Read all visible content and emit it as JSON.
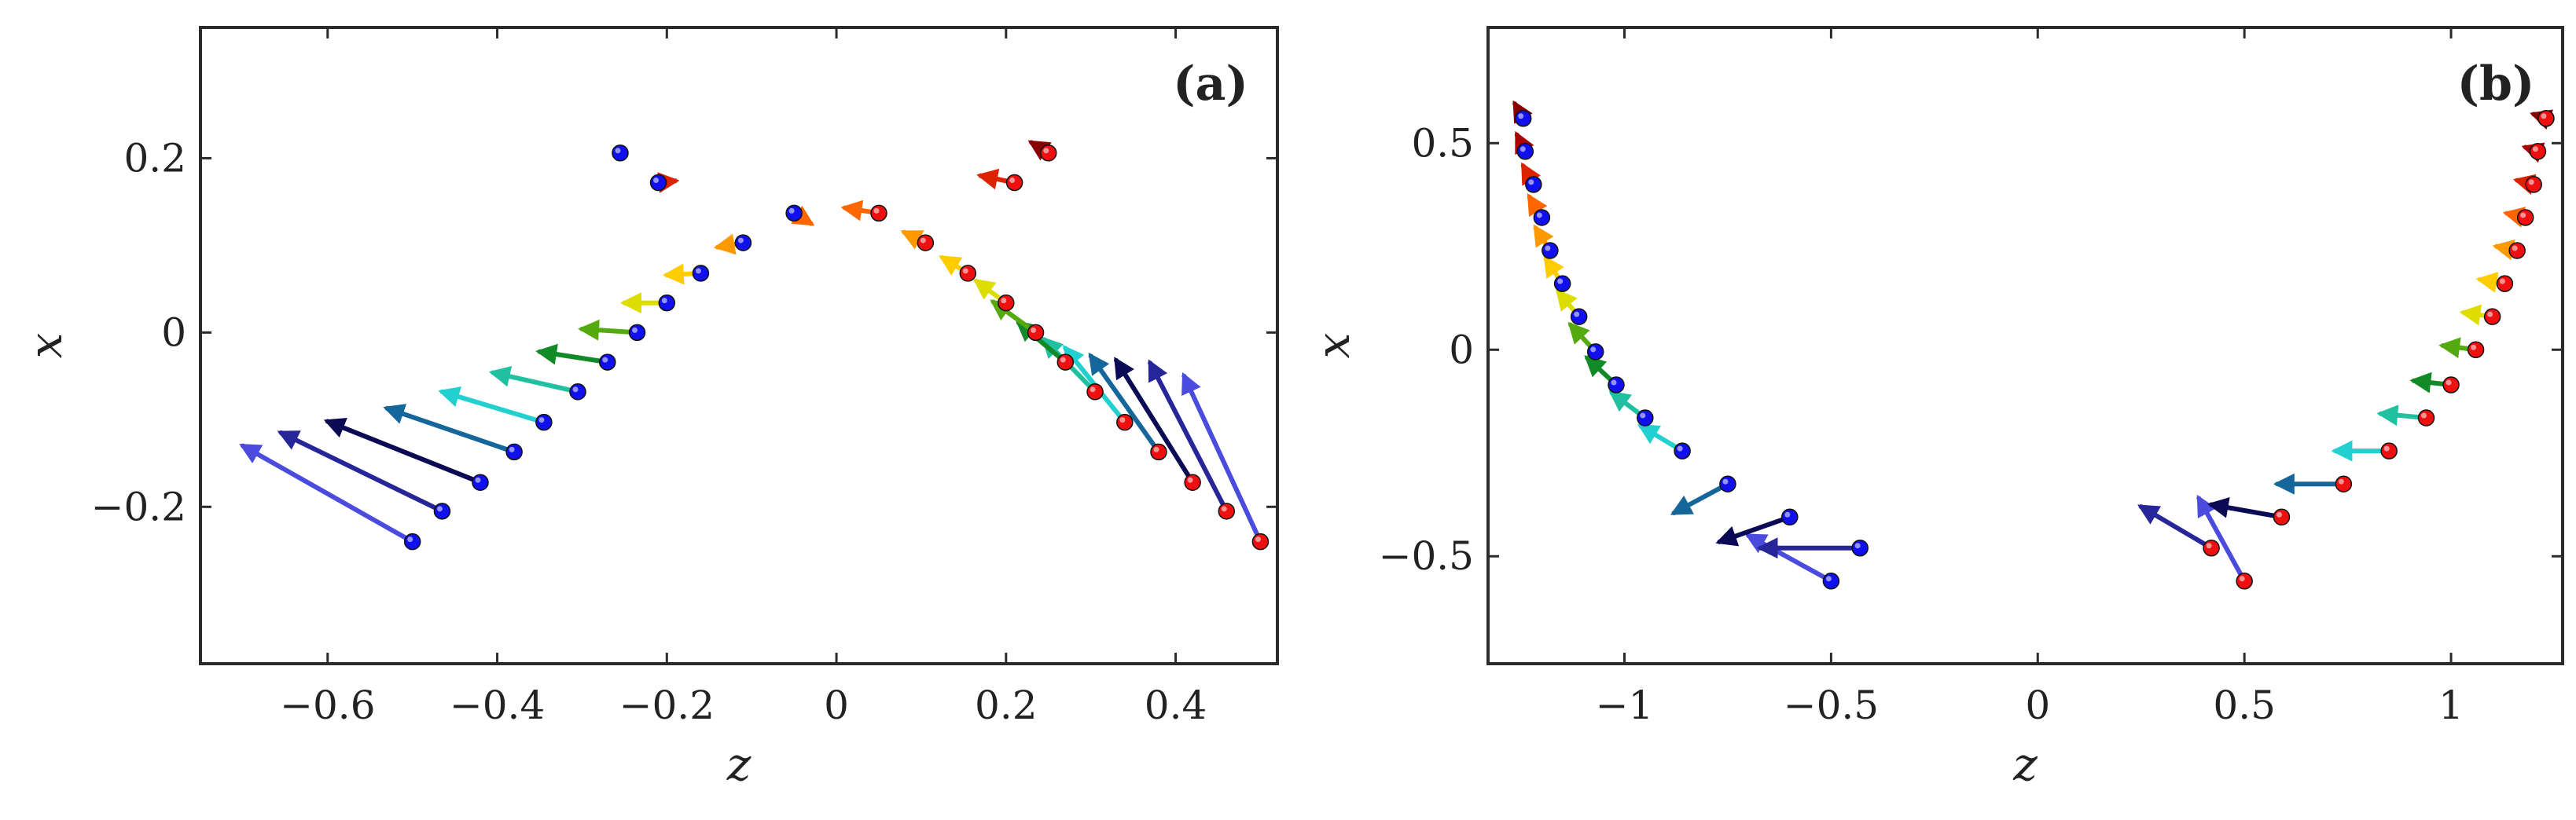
{
  "chart_data": [
    {
      "type": "scatter",
      "panel_label": "(a)",
      "xlabel": "z",
      "ylabel": "x",
      "xlim": [
        -0.75,
        0.52
      ],
      "ylim": [
        -0.38,
        0.35
      ],
      "xticks": [
        -0.6,
        -0.4,
        -0.2,
        0,
        0.2,
        0.4
      ],
      "xtick_labels": [
        "−0.6",
        "−0.4",
        "−0.2",
        "0",
        "0.2",
        "0.4"
      ],
      "yticks": [
        -0.2,
        0,
        0.2
      ],
      "ytick_labels": [
        "−0.2",
        "0",
        "0.2"
      ],
      "series": [
        {
          "name": "blue",
          "color": "#1010ee",
          "points": [
            {
              "x": -0.5,
              "y": -0.24,
              "dx": -0.2,
              "dy": 0.11,
              "color": "#4b4bdd"
            },
            {
              "x": -0.465,
              "y": -0.205,
              "dx": -0.19,
              "dy": 0.09,
              "color": "#262699"
            },
            {
              "x": -0.42,
              "y": -0.172,
              "dx": -0.18,
              "dy": 0.07,
              "color": "#0a0a55"
            },
            {
              "x": -0.38,
              "y": -0.137,
              "dx": -0.15,
              "dy": 0.05,
              "color": "#15669a"
            },
            {
              "x": -0.345,
              "y": -0.103,
              "dx": -0.12,
              "dy": 0.035,
              "color": "#22d0d0"
            },
            {
              "x": -0.305,
              "y": -0.068,
              "dx": -0.1,
              "dy": 0.022,
              "color": "#20c0a0"
            },
            {
              "x": -0.27,
              "y": -0.034,
              "dx": -0.08,
              "dy": 0.012,
              "color": "#128a28"
            },
            {
              "x": -0.235,
              "y": 0.0,
              "dx": -0.065,
              "dy": 0.004,
              "color": "#55aa10"
            },
            {
              "x": -0.2,
              "y": 0.034,
              "dx": -0.05,
              "dy": 0.0,
              "color": "#dddd00"
            },
            {
              "x": -0.16,
              "y": 0.068,
              "dx": -0.04,
              "dy": -0.002,
              "color": "#ffcc00"
            },
            {
              "x": -0.11,
              "y": 0.103,
              "dx": -0.03,
              "dy": -0.005,
              "color": "#ff9900"
            },
            {
              "x": -0.05,
              "y": 0.137,
              "dx": 0.02,
              "dy": -0.012,
              "color": "#ff6600"
            },
            {
              "x": -0.21,
              "y": 0.172,
              "dx": 0.02,
              "dy": 0.002,
              "color": "#dd2200"
            },
            {
              "x": -0.255,
              "y": 0.206,
              "dx": 0.0,
              "dy": 0.0,
              "color": "#880000"
            }
          ]
        },
        {
          "name": "red",
          "color": "#ee1010",
          "points": [
            {
              "x": 0.5,
              "y": -0.24,
              "dx": -0.09,
              "dy": 0.19,
              "color": "#4b4bdd"
            },
            {
              "x": 0.46,
              "y": -0.205,
              "dx": -0.09,
              "dy": 0.17,
              "color": "#262699"
            },
            {
              "x": 0.42,
              "y": -0.172,
              "dx": -0.09,
              "dy": 0.14,
              "color": "#0a0a55"
            },
            {
              "x": 0.38,
              "y": -0.137,
              "dx": -0.08,
              "dy": 0.11,
              "color": "#15669a"
            },
            {
              "x": 0.34,
              "y": -0.103,
              "dx": -0.07,
              "dy": 0.085,
              "color": "#22d0d0"
            },
            {
              "x": 0.305,
              "y": -0.068,
              "dx": -0.06,
              "dy": 0.06,
              "color": "#20c0a0"
            },
            {
              "x": 0.27,
              "y": -0.034,
              "dx": -0.055,
              "dy": 0.045,
              "color": "#128a28"
            },
            {
              "x": 0.235,
              "y": 0.0,
              "dx": -0.05,
              "dy": 0.035,
              "color": "#55aa10"
            },
            {
              "x": 0.2,
              "y": 0.034,
              "dx": -0.035,
              "dy": 0.025,
              "color": "#dddd00"
            },
            {
              "x": 0.155,
              "y": 0.068,
              "dx": -0.03,
              "dy": 0.018,
              "color": "#ffcc00"
            },
            {
              "x": 0.105,
              "y": 0.103,
              "dx": -0.025,
              "dy": 0.012,
              "color": "#ff9900"
            },
            {
              "x": 0.05,
              "y": 0.137,
              "dx": -0.04,
              "dy": 0.006,
              "color": "#ff6600"
            },
            {
              "x": 0.21,
              "y": 0.172,
              "dx": -0.04,
              "dy": 0.008,
              "color": "#dd2200"
            },
            {
              "x": 0.25,
              "y": 0.206,
              "dx": -0.02,
              "dy": 0.012,
              "color": "#880000"
            }
          ]
        }
      ]
    },
    {
      "type": "scatter",
      "panel_label": "(b)",
      "xlabel": "z",
      "ylabel": "x",
      "xlim": [
        -1.33,
        1.27
      ],
      "ylim": [
        -0.76,
        0.78
      ],
      "xticks": [
        -1,
        -0.5,
        0,
        0.5,
        1
      ],
      "xtick_labels": [
        "−1",
        "−0.5",
        "0",
        "0.5",
        "1"
      ],
      "yticks": [
        -0.5,
        0,
        0.5
      ],
      "ytick_labels": [
        "−0.5",
        "0",
        "0.5"
      ],
      "series": [
        {
          "name": "blue",
          "color": "#1010ee",
          "points": [
            {
              "x": -0.5,
              "y": -0.56,
              "dx": -0.2,
              "dy": 0.11,
              "color": "#4b4bdd"
            },
            {
              "x": -0.43,
              "y": -0.48,
              "dx": -0.24,
              "dy": 0.0,
              "color": "#262699"
            },
            {
              "x": -0.6,
              "y": -0.405,
              "dx": -0.17,
              "dy": -0.06,
              "color": "#0a0a55"
            },
            {
              "x": -0.75,
              "y": -0.325,
              "dx": -0.13,
              "dy": -0.07,
              "color": "#15669a"
            },
            {
              "x": -0.86,
              "y": -0.245,
              "dx": -0.1,
              "dy": 0.06,
              "color": "#22d0d0"
            },
            {
              "x": -0.95,
              "y": -0.165,
              "dx": -0.08,
              "dy": 0.06,
              "color": "#20c0a0"
            },
            {
              "x": -1.02,
              "y": -0.085,
              "dx": -0.07,
              "dy": 0.065,
              "color": "#128a28"
            },
            {
              "x": -1.07,
              "y": -0.005,
              "dx": -0.06,
              "dy": 0.065,
              "color": "#55aa10"
            },
            {
              "x": -1.11,
              "y": 0.08,
              "dx": -0.05,
              "dy": 0.06,
              "color": "#dddd00"
            },
            {
              "x": -1.15,
              "y": 0.16,
              "dx": -0.04,
              "dy": 0.06,
              "color": "#ffcc00"
            },
            {
              "x": -1.18,
              "y": 0.24,
              "dx": -0.035,
              "dy": 0.055,
              "color": "#ff9900"
            },
            {
              "x": -1.2,
              "y": 0.32,
              "dx": -0.03,
              "dy": 0.05,
              "color": "#ff6600"
            },
            {
              "x": -1.22,
              "y": 0.4,
              "dx": -0.025,
              "dy": 0.045,
              "color": "#dd2200"
            },
            {
              "x": -1.24,
              "y": 0.48,
              "dx": -0.02,
              "dy": 0.04,
              "color": "#aa0000"
            },
            {
              "x": -1.245,
              "y": 0.56,
              "dx": -0.02,
              "dy": 0.035,
              "color": "#880000"
            }
          ]
        },
        {
          "name": "red",
          "color": "#ee1010",
          "points": [
            {
              "x": 0.5,
              "y": -0.56,
              "dx": -0.11,
              "dy": 0.2,
              "color": "#4b4bdd"
            },
            {
              "x": 0.42,
              "y": -0.48,
              "dx": -0.17,
              "dy": 0.1,
              "color": "#262699"
            },
            {
              "x": 0.59,
              "y": -0.405,
              "dx": -0.17,
              "dy": 0.03,
              "color": "#0a0a55"
            },
            {
              "x": 0.74,
              "y": -0.325,
              "dx": -0.16,
              "dy": 0.0,
              "color": "#15669a"
            },
            {
              "x": 0.85,
              "y": -0.245,
              "dx": -0.13,
              "dy": 0.0,
              "color": "#22d0d0"
            },
            {
              "x": 0.94,
              "y": -0.165,
              "dx": -0.11,
              "dy": 0.01,
              "color": "#20c0a0"
            },
            {
              "x": 1.0,
              "y": -0.085,
              "dx": -0.09,
              "dy": 0.01,
              "color": "#128a28"
            },
            {
              "x": 1.06,
              "y": 0.0,
              "dx": -0.08,
              "dy": 0.01,
              "color": "#55aa10"
            },
            {
              "x": 1.1,
              "y": 0.08,
              "dx": -0.07,
              "dy": 0.01,
              "color": "#dddd00"
            },
            {
              "x": 1.13,
              "y": 0.16,
              "dx": -0.06,
              "dy": 0.01,
              "color": "#ffcc00"
            },
            {
              "x": 1.16,
              "y": 0.24,
              "dx": -0.05,
              "dy": 0.01,
              "color": "#ff9900"
            },
            {
              "x": 1.18,
              "y": 0.32,
              "dx": -0.045,
              "dy": 0.01,
              "color": "#ff6600"
            },
            {
              "x": 1.2,
              "y": 0.4,
              "dx": -0.04,
              "dy": 0.01,
              "color": "#dd2200"
            },
            {
              "x": 1.21,
              "y": 0.48,
              "dx": -0.03,
              "dy": 0.01,
              "color": "#aa0000"
            },
            {
              "x": 1.23,
              "y": 0.56,
              "dx": -0.03,
              "dy": 0.01,
              "color": "#880000"
            }
          ]
        }
      ]
    }
  ]
}
